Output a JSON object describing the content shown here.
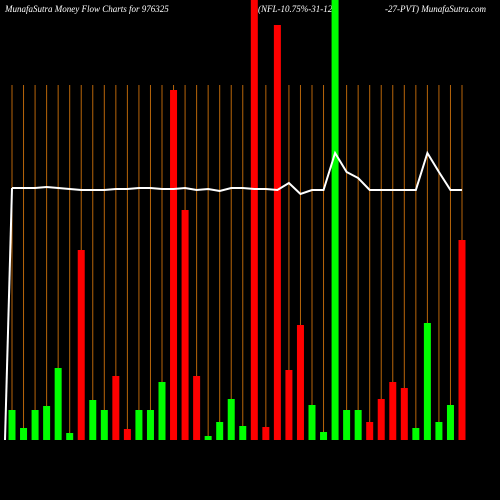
{
  "chart_data": {
    "type": "bar",
    "title_parts": [
      "MunafaSutra  Money Flow  Charts for 976325",
      "(NFL-10.75%-31-12",
      "-27-PVT) MunafaSutra.com"
    ],
    "values": [
      30,
      12,
      30,
      34,
      72,
      7,
      190,
      40,
      30,
      64,
      11,
      30,
      30,
      58,
      350,
      230,
      64,
      4,
      18,
      41,
      14,
      440,
      13,
      415,
      70,
      115,
      35,
      8,
      440,
      30,
      30,
      18,
      41,
      58,
      52,
      12,
      117,
      18,
      35,
      200
    ],
    "colors": [
      "#00ff00",
      "#00ff00",
      "#00ff00",
      "#00ff00",
      "#00ff00",
      "#00ff00",
      "#ff0000",
      "#00ff00",
      "#00ff00",
      "#ff0000",
      "#ff0000",
      "#00ff00",
      "#00ff00",
      "#00ff00",
      "#ff0000",
      "#ff0000",
      "#ff0000",
      "#00ff00",
      "#00ff00",
      "#00ff00",
      "#00ff00",
      "#ff0000",
      "#ff0000",
      "#ff0000",
      "#ff0000",
      "#ff0000",
      "#00ff00",
      "#00ff00",
      "#00ff00",
      "#00ff00",
      "#00ff00",
      "#ff0000",
      "#ff0000",
      "#ff0000",
      "#ff0000",
      "#00ff00",
      "#00ff00",
      "#00ff00",
      "#00ff00",
      "#ff0000"
    ],
    "line_values": [
      252,
      252,
      252,
      253,
      252,
      251,
      250,
      250,
      250,
      251,
      251,
      252,
      252,
      251,
      251,
      252,
      250,
      251,
      249,
      252,
      252,
      251,
      251,
      250,
      257,
      246,
      250,
      250,
      287,
      268,
      262,
      250,
      250,
      250,
      250,
      250,
      287,
      268,
      250,
      250
    ],
    "line_color": "#ffffff",
    "guide_color": "#b8650a",
    "ylim": [
      0,
      440
    ]
  }
}
